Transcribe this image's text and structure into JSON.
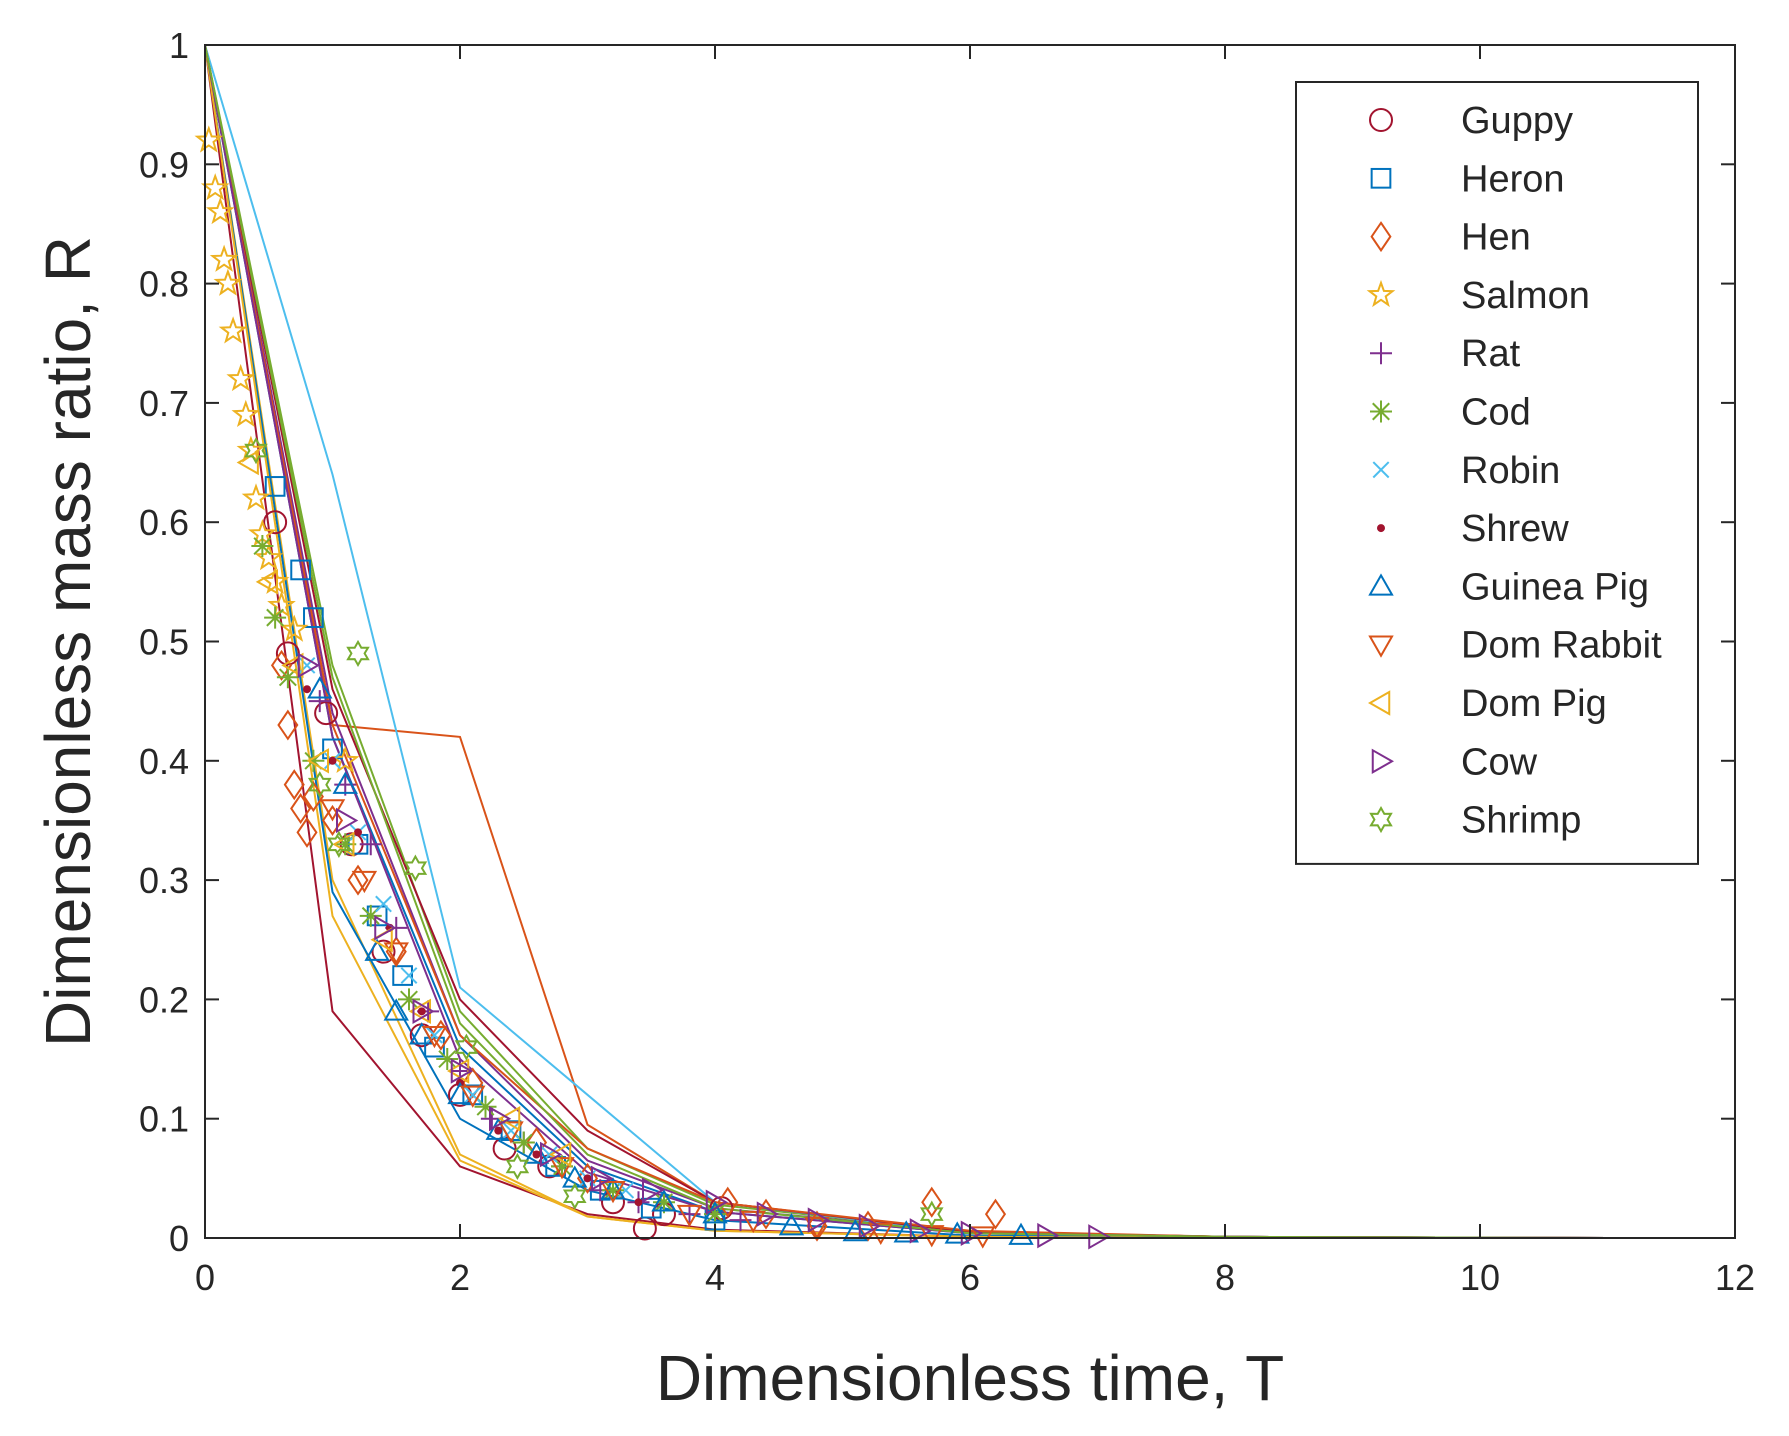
{
  "chart_data": {
    "type": "scatter",
    "title": "",
    "xlabel": "Dimensionless time, T",
    "ylabel": "Dimensionless mass ratio, R",
    "xlim": [
      0,
      12
    ],
    "ylim": [
      0,
      1
    ],
    "xticks": [
      0,
      2,
      4,
      6,
      8,
      10,
      12
    ],
    "xtick_labels": [
      "0",
      "2",
      "4",
      "6",
      "8",
      "10",
      "12"
    ],
    "yticks": [
      0,
      0.1,
      0.2,
      0.3,
      0.4,
      0.5,
      0.6,
      0.7,
      0.8,
      0.9,
      1
    ],
    "ytick_labels": [
      "0",
      "0.1",
      "0.2",
      "0.3",
      "0.4",
      "0.5",
      "0.6",
      "0.7",
      "0.8",
      "0.9",
      "1"
    ],
    "grid": false,
    "legend_position": "top-right",
    "series": [
      {
        "name": "Guppy",
        "marker": "circle",
        "color": "#A2142F",
        "x": [
          0.55,
          0.65,
          0.95,
          1.15,
          1.4,
          1.7,
          2.0,
          2.35,
          2.7,
          3.2,
          3.45,
          3.6,
          4.05
        ],
        "y": [
          0.6,
          0.49,
          0.44,
          0.33,
          0.24,
          0.17,
          0.12,
          0.075,
          0.06,
          0.03,
          0.008,
          0.02,
          0.025
        ],
        "fit": {
          "x": [
            0,
            1,
            2,
            3,
            4,
            6,
            8,
            11
          ],
          "y": [
            1,
            0.19,
            0.06,
            0.02,
            0.007,
            0.001,
            0,
            0
          ]
        }
      },
      {
        "name": "Heron",
        "marker": "square",
        "color": "#0072BD",
        "x": [
          0.55,
          0.75,
          0.85,
          1.0,
          1.2,
          1.35,
          1.55,
          1.8,
          2.1,
          2.4,
          2.75,
          3.1,
          3.5,
          4.0
        ],
        "y": [
          0.63,
          0.56,
          0.52,
          0.41,
          0.33,
          0.27,
          0.22,
          0.16,
          0.12,
          0.09,
          0.06,
          0.04,
          0.025,
          0.015
        ],
        "fit": {
          "x": [
            0,
            1,
            2,
            3,
            4,
            6,
            8,
            11
          ],
          "y": [
            1,
            0.42,
            0.16,
            0.06,
            0.022,
            0.004,
            0.001,
            0
          ]
        }
      },
      {
        "name": "Hen",
        "marker": "diamond",
        "color": "#D95319",
        "x": [
          0.6,
          0.65,
          0.7,
          0.75,
          0.8,
          0.85,
          1.0,
          1.2,
          1.5,
          1.85,
          2.1,
          2.6,
          3.0,
          4.1,
          4.4,
          4.8,
          5.2,
          5.7,
          6.2
        ],
        "y": [
          0.48,
          0.43,
          0.38,
          0.36,
          0.34,
          0.37,
          0.35,
          0.3,
          0.24,
          0.17,
          0.13,
          0.08,
          0.05,
          0.03,
          0.02,
          0.01,
          0.01,
          0.03,
          0.02
        ],
        "fit": {
          "x": [
            0,
            1,
            2,
            3,
            4,
            6,
            8,
            11
          ],
          "y": [
            1,
            0.43,
            0.42,
            0.095,
            0.03,
            0.005,
            0.001,
            0
          ]
        }
      },
      {
        "name": "Salmon",
        "marker": "star5",
        "color": "#EDB120",
        "x": [
          0.03,
          0.08,
          0.12,
          0.15,
          0.18,
          0.22,
          0.28,
          0.32,
          0.36,
          0.4,
          0.45,
          0.5,
          0.55,
          0.6,
          0.7,
          1.1
        ],
        "y": [
          0.92,
          0.88,
          0.86,
          0.82,
          0.8,
          0.76,
          0.72,
          0.69,
          0.66,
          0.62,
          0.59,
          0.57,
          0.55,
          0.53,
          0.51,
          0.4
        ],
        "fit": {
          "x": [
            0,
            1,
            2,
            3,
            4,
            6,
            8,
            11
          ],
          "y": [
            1,
            0.3,
            0.07,
            0.018,
            0.006,
            0.001,
            0,
            0
          ]
        }
      },
      {
        "name": "Rat",
        "marker": "plus",
        "color": "#7E2F8E",
        "x": [
          0.9,
          1.1,
          1.3,
          1.5,
          1.75,
          2.0,
          2.25,
          2.5,
          2.8,
          3.1,
          3.4,
          3.8,
          4.2
        ],
        "y": [
          0.45,
          0.38,
          0.33,
          0.26,
          0.19,
          0.14,
          0.1,
          0.08,
          0.06,
          0.04,
          0.03,
          0.02,
          0.015
        ],
        "fit": {
          "x": [
            0,
            1,
            2,
            3,
            4,
            6,
            8,
            11
          ],
          "y": [
            1,
            0.44,
            0.17,
            0.065,
            0.025,
            0.005,
            0.001,
            0
          ]
        }
      },
      {
        "name": "Cod",
        "marker": "asterisk",
        "color": "#77AC30",
        "x": [
          0.45,
          0.55,
          0.65,
          0.85,
          1.1,
          1.3,
          1.6,
          1.9,
          2.2,
          2.5,
          2.8,
          3.2,
          3.6,
          4.0
        ],
        "y": [
          0.58,
          0.52,
          0.47,
          0.4,
          0.33,
          0.27,
          0.2,
          0.15,
          0.11,
          0.08,
          0.06,
          0.04,
          0.03,
          0.02
        ],
        "fit": {
          "x": [
            0,
            1,
            2,
            3,
            4,
            6,
            8,
            11
          ],
          "y": [
            1,
            0.48,
            0.19,
            0.075,
            0.028,
            0.005,
            0.001,
            0
          ]
        }
      },
      {
        "name": "Robin",
        "marker": "cross",
        "color": "#4DBEEE",
        "x": [
          0.8,
          1.0,
          1.2,
          1.4,
          1.6,
          1.8,
          2.1,
          2.4,
          2.7,
          3.0,
          3.3
        ],
        "y": [
          0.48,
          0.4,
          0.34,
          0.28,
          0.22,
          0.17,
          0.12,
          0.09,
          0.07,
          0.05,
          0.04
        ],
        "fit": {
          "x": [
            0,
            1,
            2,
            3,
            4,
            6,
            8,
            11
          ],
          "y": [
            1,
            0.64,
            0.21,
            0.12,
            0.03,
            0.004,
            0.001,
            0
          ]
        }
      },
      {
        "name": "Shrew",
        "marker": "dot",
        "color": "#A2142F",
        "x": [
          0.8,
          1.0,
          1.2,
          1.45,
          1.7,
          2.0,
          2.3,
          2.6,
          3.0,
          3.4
        ],
        "y": [
          0.46,
          0.4,
          0.34,
          0.26,
          0.19,
          0.13,
          0.09,
          0.07,
          0.05,
          0.03
        ],
        "fit": {
          "x": [
            0,
            1,
            2,
            3,
            4,
            6,
            8,
            11
          ],
          "y": [
            1,
            0.46,
            0.2,
            0.09,
            0.03,
            0.005,
            0.001,
            0
          ]
        }
      },
      {
        "name": "Guinea Pig",
        "marker": "triangle-up",
        "color": "#0072BD",
        "x": [
          0.9,
          1.1,
          1.35,
          1.5,
          1.7,
          2.0,
          2.3,
          2.6,
          2.9,
          3.2,
          3.6,
          4.0,
          4.6,
          5.1,
          5.5,
          5.9,
          6.4
        ],
        "y": [
          0.46,
          0.38,
          0.24,
          0.19,
          0.17,
          0.12,
          0.09,
          0.07,
          0.05,
          0.04,
          0.03,
          0.02,
          0.01,
          0.005,
          0.004,
          0.003,
          0.002
        ],
        "fit": {
          "x": [
            0,
            1,
            2,
            3,
            4,
            6,
            8,
            11
          ],
          "y": [
            1,
            0.29,
            0.1,
            0.04,
            0.015,
            0.002,
            0,
            0
          ]
        }
      },
      {
        "name": "Dom Rabbit",
        "marker": "triangle-down",
        "color": "#D95319",
        "x": [
          1.0,
          1.25,
          1.5,
          1.8,
          2.1,
          2.4,
          2.8,
          3.2,
          3.8,
          4.3,
          4.8,
          5.3,
          5.7,
          6.1
        ],
        "y": [
          0.36,
          0.3,
          0.24,
          0.17,
          0.12,
          0.09,
          0.06,
          0.04,
          0.02,
          0.015,
          0.01,
          0.005,
          0.003,
          0.002
        ],
        "fit": {
          "x": [
            0,
            1,
            2,
            3,
            4,
            6,
            8,
            11
          ],
          "y": [
            1,
            0.43,
            0.17,
            0.075,
            0.03,
            0.006,
            0.001,
            0
          ]
        }
      },
      {
        "name": "Dom Pig",
        "marker": "triangle-left",
        "color": "#EDB120",
        "x": [
          0.35,
          0.5,
          0.7,
          0.9,
          1.1,
          1.4,
          1.7,
          2.0,
          2.4,
          2.8
        ],
        "y": [
          0.65,
          0.55,
          0.48,
          0.4,
          0.33,
          0.25,
          0.19,
          0.14,
          0.1,
          0.07
        ],
        "fit": {
          "x": [
            0,
            1,
            2,
            3,
            4,
            6,
            8,
            11
          ],
          "y": [
            1,
            0.27,
            0.065,
            0.018,
            0.006,
            0.001,
            0,
            0
          ]
        }
      },
      {
        "name": "Cow",
        "marker": "triangle-right",
        "color": "#7E2F8E",
        "x": [
          0.8,
          1.1,
          1.4,
          1.7,
          2.0,
          2.3,
          2.7,
          3.1,
          3.5,
          4.0,
          4.4,
          4.8,
          5.2,
          5.6,
          6.0,
          6.6,
          7.0
        ],
        "y": [
          0.48,
          0.35,
          0.26,
          0.19,
          0.14,
          0.1,
          0.07,
          0.05,
          0.04,
          0.03,
          0.02,
          0.015,
          0.01,
          0.006,
          0.004,
          0.002,
          0.001
        ],
        "fit": {
          "x": [
            0,
            1,
            2,
            3,
            4,
            6,
            8,
            11
          ],
          "y": [
            1,
            0.42,
            0.15,
            0.055,
            0.022,
            0.004,
            0.001,
            0
          ]
        }
      },
      {
        "name": "Shrimp",
        "marker": "star6",
        "color": "#77AC30",
        "x": [
          0.4,
          0.9,
          1.05,
          1.2,
          1.65,
          2.05,
          2.45,
          2.9,
          5.7
        ],
        "y": [
          0.66,
          0.38,
          0.33,
          0.49,
          0.31,
          0.16,
          0.06,
          0.035,
          0.02
        ],
        "fit": {
          "x": [
            0,
            1,
            2,
            3,
            4,
            6,
            8,
            11
          ],
          "y": [
            1,
            0.47,
            0.18,
            0.07,
            0.025,
            0.004,
            0.001,
            0
          ]
        }
      }
    ]
  }
}
